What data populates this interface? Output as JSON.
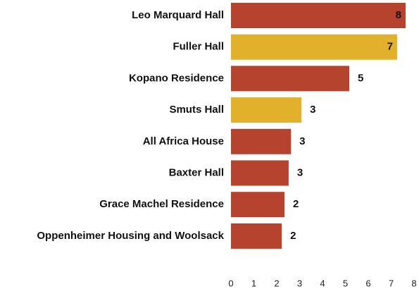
{
  "chart_data": {
    "type": "bar",
    "orientation": "horizontal",
    "categories": [
      "Leo Marquard Hall",
      "Fuller Hall",
      "Kopano Residence",
      "Smuts Hall",
      "All Africa House",
      "Baxter Hall",
      "Grace Machel Residence",
      "Oppenheimer Housing and Woolsack"
    ],
    "values": [
      7.63,
      7.26,
      5.17,
      3.08,
      2.62,
      2.52,
      2.34,
      2.22
    ],
    "value_labels": [
      "8",
      "7",
      "5",
      "3",
      "3",
      "3",
      "2",
      "2"
    ],
    "colors": [
      "#b5432e",
      "#e2b12b",
      "#b5432e",
      "#e2b12b",
      "#b5432e",
      "#b5432e",
      "#b5432e",
      "#b5432e"
    ],
    "xlim": [
      0,
      8
    ],
    "xticks": [
      0,
      1,
      2,
      3,
      4,
      5,
      6,
      7,
      8
    ],
    "grid": false
  }
}
